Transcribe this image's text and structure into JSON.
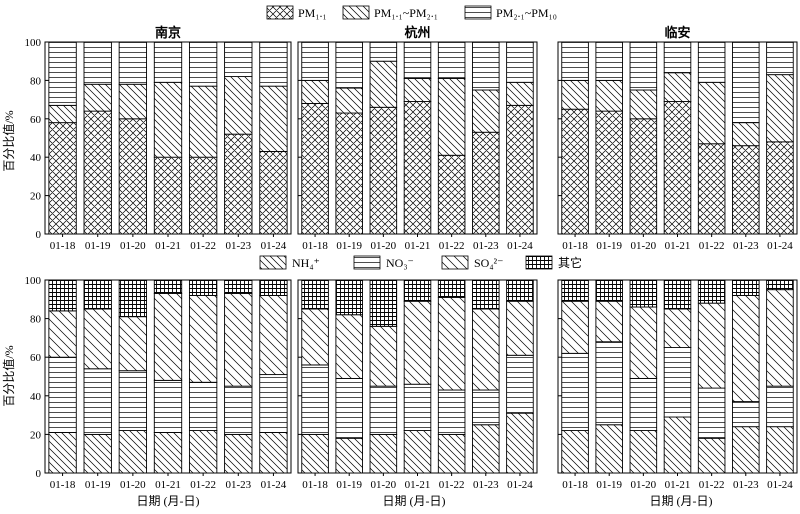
{
  "figure": {
    "legend_top": [
      {
        "key": "pm11",
        "text": "PM₁.₁"
      },
      {
        "key": "pm11_21",
        "text": "PM₁.₁~PM₂.₁"
      },
      {
        "key": "pm21_10",
        "text": "PM₂.₁~PM₁₀"
      }
    ],
    "legend_bottom": [
      {
        "key": "nh4",
        "text": "NH₄⁺"
      },
      {
        "key": "no3",
        "text": "NO₃⁻"
      },
      {
        "key": "so4",
        "text": "SO₄²⁻"
      },
      {
        "key": "other",
        "text": "其它"
      }
    ],
    "ylabel": "百分比值/%",
    "xlabel": "日期 (月-日)"
  },
  "chart_data": [
    {
      "type": "bar",
      "stacked": true,
      "title": "南京",
      "categories": [
        "01-18",
        "01-19",
        "01-20",
        "01-21",
        "01-22",
        "01-23",
        "01-24"
      ],
      "ylim": [
        0,
        100
      ],
      "yticks": [
        0,
        20,
        40,
        60,
        80,
        100
      ],
      "series": [
        {
          "name": "PM₁.₁",
          "pattern": "crosshatch",
          "values": [
            58,
            64,
            60,
            40,
            40,
            52,
            43
          ]
        },
        {
          "name": "PM₁.₁~PM₂.₁",
          "pattern": "diagonal",
          "values": [
            9,
            14,
            18,
            39,
            37,
            30,
            34
          ]
        },
        {
          "name": "PM₂.₁~PM₁₀",
          "pattern": "horizontal",
          "values": [
            33,
            22,
            22,
            21,
            23,
            18,
            23
          ]
        }
      ]
    },
    {
      "type": "bar",
      "stacked": true,
      "title": "杭州",
      "categories": [
        "01-18",
        "01-19",
        "01-20",
        "01-21",
        "01-22",
        "01-23",
        "01-24"
      ],
      "ylim": [
        0,
        100
      ],
      "yticks": [
        0,
        20,
        40,
        60,
        80,
        100
      ],
      "series": [
        {
          "name": "PM₁.₁",
          "pattern": "crosshatch",
          "values": [
            68,
            63,
            66,
            69,
            41,
            53,
            67
          ]
        },
        {
          "name": "PM₁.₁~PM₂.₁",
          "pattern": "diagonal",
          "values": [
            12,
            13,
            24,
            12,
            40,
            22,
            12
          ]
        },
        {
          "name": "PM₂.₁~PM₁₀",
          "pattern": "horizontal",
          "values": [
            20,
            24,
            10,
            19,
            19,
            25,
            21
          ]
        }
      ]
    },
    {
      "type": "bar",
      "stacked": true,
      "title": "临安",
      "categories": [
        "01-18",
        "01-19",
        "01-20",
        "01-21",
        "01-22",
        "01-23",
        "01-24"
      ],
      "ylim": [
        0,
        100
      ],
      "yticks": [
        0,
        20,
        40,
        60,
        80,
        100
      ],
      "series": [
        {
          "name": "PM₁.₁",
          "pattern": "crosshatch",
          "values": [
            65,
            64,
            60,
            69,
            47,
            46,
            48
          ]
        },
        {
          "name": "PM₁.₁~PM₂.₁",
          "pattern": "diagonal",
          "values": [
            15,
            16,
            15,
            15,
            32,
            12,
            35
          ]
        },
        {
          "name": "PM₂.₁~PM₁₀",
          "pattern": "horizontal",
          "values": [
            20,
            20,
            25,
            16,
            21,
            42,
            17
          ]
        }
      ]
    },
    {
      "type": "bar",
      "stacked": true,
      "categories": [
        "01-18",
        "01-19",
        "01-20",
        "01-21",
        "01-22",
        "01-23",
        "01-24"
      ],
      "ylim": [
        0,
        100
      ],
      "yticks": [
        0,
        20,
        40,
        60,
        80,
        100
      ],
      "series": [
        {
          "name": "NH₄⁺",
          "pattern": "diagonal",
          "values": [
            21,
            20,
            22,
            21,
            22,
            20,
            21
          ]
        },
        {
          "name": "NO₃⁻",
          "pattern": "horizontal",
          "values": [
            39,
            34,
            31,
            27,
            25,
            25,
            30
          ]
        },
        {
          "name": "SO₄²⁻",
          "pattern": "diagonal-wide",
          "values": [
            24,
            31,
            28,
            45,
            45,
            48,
            41
          ]
        },
        {
          "name": "其它",
          "pattern": "grid",
          "values": [
            16,
            15,
            19,
            7,
            8,
            7,
            8
          ]
        }
      ]
    },
    {
      "type": "bar",
      "stacked": true,
      "categories": [
        "01-18",
        "01-19",
        "01-20",
        "01-21",
        "01-22",
        "01-23",
        "01-24"
      ],
      "ylim": [
        0,
        100
      ],
      "yticks": [
        0,
        20,
        40,
        60,
        80,
        100
      ],
      "series": [
        {
          "name": "NH₄⁺",
          "pattern": "diagonal",
          "values": [
            20,
            18,
            20,
            22,
            20,
            25,
            31
          ]
        },
        {
          "name": "NO₃⁻",
          "pattern": "horizontal",
          "values": [
            36,
            31,
            25,
            24,
            23,
            18,
            30
          ]
        },
        {
          "name": "SO₄²⁻",
          "pattern": "diagonal-wide",
          "values": [
            29,
            33,
            31,
            43,
            48,
            42,
            28
          ]
        },
        {
          "name": "其它",
          "pattern": "grid",
          "values": [
            15,
            18,
            24,
            11,
            9,
            15,
            11
          ]
        }
      ]
    },
    {
      "type": "bar",
      "stacked": true,
      "categories": [
        "01-18",
        "01-19",
        "01-20",
        "01-21",
        "01-22",
        "01-23",
        "01-24"
      ],
      "ylim": [
        0,
        100
      ],
      "yticks": [
        0,
        20,
        40,
        60,
        80,
        100
      ],
      "series": [
        {
          "name": "NH₄⁺",
          "pattern": "diagonal",
          "values": [
            22,
            25,
            22,
            29,
            18,
            24,
            24
          ]
        },
        {
          "name": "NO₃⁻",
          "pattern": "horizontal",
          "values": [
            40,
            43,
            27,
            36,
            26,
            13,
            21
          ]
        },
        {
          "name": "SO₄²⁻",
          "pattern": "diagonal-wide",
          "values": [
            27,
            21,
            37,
            20,
            44,
            55,
            50
          ]
        },
        {
          "name": "其它",
          "pattern": "grid",
          "values": [
            11,
            11,
            14,
            15,
            12,
            8,
            5
          ]
        }
      ]
    }
  ]
}
